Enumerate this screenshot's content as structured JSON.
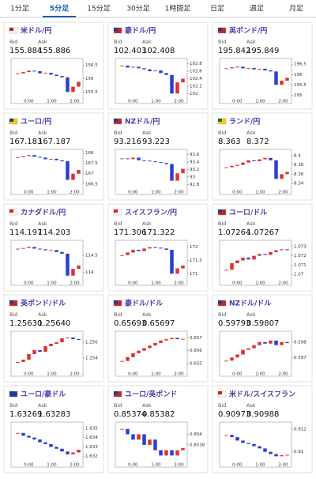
{
  "tabs": [
    "1分足",
    "5分足",
    "15分足",
    "30分足",
    "1時間足",
    "日足",
    "週足",
    "月足"
  ],
  "active_tab": 1,
  "bid_label": "Bid",
  "ask_label": "Ask",
  "xlabels": [
    "0:00",
    "1:00",
    "2:00"
  ],
  "panels": [
    {
      "name": "米ドル/円",
      "bid": "155.884",
      "ask": "155.886",
      "chart": {
        "type": "candlestick",
        "ylim": [
          155.3,
          156.7
        ],
        "yticks": [
          155.5,
          156,
          156.5
        ],
        "values": [
          156.2,
          156.25,
          156.3,
          156.28,
          156.2,
          156.22,
          156.15,
          156.1,
          156.05,
          155.5,
          155.7,
          155.88
        ]
      }
    },
    {
      "name": "豪ドル/円",
      "bid": "102.403",
      "ask": "102.408",
      "chart": {
        "type": "candlestick",
        "ylim": [
          101.9,
          102.9
        ],
        "yticks": [
          102,
          102.2,
          102.4,
          102.6,
          102.8
        ],
        "values": [
          102.75,
          102.7,
          102.72,
          102.68,
          102.65,
          102.6,
          102.62,
          102.55,
          102.5,
          102.0,
          102.3,
          102.4
        ]
      }
    },
    {
      "name": "英ポンド/円",
      "bid": "195.842",
      "ask": "195.849",
      "chart": {
        "type": "candlestick",
        "ylim": [
          194.9,
          196.7
        ],
        "yticks": [
          195,
          195.5,
          196,
          196.5
        ],
        "values": [
          196.3,
          196.35,
          196.38,
          196.3,
          196.32,
          196.25,
          196.28,
          196.2,
          196.15,
          195.5,
          195.7,
          195.84
        ]
      }
    },
    {
      "name": "ユーロ/円",
      "bid": "167.183",
      "ask": "167.187",
      "chart": {
        "type": "candlestick",
        "ylim": [
          166.3,
          168.1
        ],
        "yticks": [
          166.5,
          167,
          167.5,
          168
        ],
        "values": [
          167.8,
          167.85,
          167.9,
          167.82,
          167.78,
          167.7,
          167.72,
          167.65,
          167.6,
          166.7,
          167.0,
          167.18
        ]
      }
    },
    {
      "name": "NZドル/円",
      "bid": "93.216",
      "ask": "93.223",
      "chart": {
        "type": "candlestick",
        "ylim": [
          92.7,
          93.7
        ],
        "yticks": [
          92.8,
          93,
          93.2,
          93.4,
          93.6
        ],
        "values": [
          93.5,
          93.48,
          93.52,
          93.45,
          93.44,
          93.42,
          93.4,
          93.38,
          93.35,
          92.9,
          93.1,
          93.22
        ]
      }
    },
    {
      "name": "ランド/円",
      "bid": "8.363",
      "ask": "8.372",
      "chart": {
        "type": "candlestick",
        "ylim": [
          8.33,
          8.41
        ],
        "yticks": [
          8.34,
          8.36,
          8.38,
          8.4
        ],
        "values": [
          8.375,
          8.378,
          8.38,
          8.385,
          8.39,
          8.388,
          8.392,
          8.395,
          8.39,
          8.35,
          8.36,
          8.365
        ]
      }
    },
    {
      "name": "カナダドル/円",
      "bid": "114.197",
      "ask": "114.203",
      "chart": {
        "type": "candlestick",
        "ylim": [
          113.8,
          114.9
        ],
        "yticks": [
          114,
          114.5
        ],
        "values": [
          114.7,
          114.72,
          114.75,
          114.7,
          114.68,
          114.65,
          114.66,
          114.6,
          114.55,
          113.9,
          114.1,
          114.2
        ]
      }
    },
    {
      "name": "スイスフラン/円",
      "bid": "171.306",
      "ask": "171.322",
      "chart": {
        "type": "candlestick",
        "ylim": [
          170.8,
          172.2
        ],
        "yticks": [
          171,
          171.5,
          172
        ],
        "values": [
          171.7,
          171.8,
          171.9,
          171.85,
          171.95,
          172.0,
          171.98,
          171.95,
          171.9,
          171.0,
          171.2,
          171.31
        ]
      }
    },
    {
      "name": "ユーロ/ドル",
      "bid": "1.07264",
      "ask": "1.07267",
      "chart": {
        "type": "candlestick",
        "ylim": [
          1.0695,
          1.0735
        ],
        "yticks": [
          1.07,
          1.071,
          1.072,
          1.073
        ],
        "values": [
          1.0705,
          1.0712,
          1.0715,
          1.0718,
          1.0716,
          1.072,
          1.0722,
          1.0721,
          1.0724,
          1.0726,
          1.0727,
          1.07264
        ]
      }
    },
    {
      "name": "英ポンド/ドル",
      "bid": "1.25630",
      "ask": "1.25640",
      "chart": {
        "type": "candlestick",
        "ylim": [
          1.2525,
          1.2572
        ],
        "yticks": [
          1.254,
          1.256
        ],
        "values": [
          1.2535,
          1.2538,
          1.2545,
          1.255,
          1.2548,
          1.2555,
          1.2558,
          1.256,
          1.2565,
          1.2566,
          1.2564,
          1.2563
        ]
      }
    },
    {
      "name": "豪ドル/ドル",
      "bid": "0.65693",
      "ask": "0.65697",
      "chart": {
        "type": "candlestick",
        "ylim": [
          0.6545,
          0.6574
        ],
        "yticks": [
          0.655,
          0.656,
          0.657
        ],
        "values": [
          0.6552,
          0.6555,
          0.6558,
          0.656,
          0.6562,
          0.6564,
          0.6566,
          0.6568,
          0.6569,
          0.657,
          0.6569,
          0.65693
        ]
      }
    },
    {
      "name": "NZドル/ドル",
      "bid": "0.59793",
      "ask": "0.59807",
      "chart": {
        "type": "candlestick",
        "ylim": [
          0.5962,
          0.5986
        ],
        "yticks": [
          0.597,
          0.598
        ],
        "values": [
          0.5968,
          0.597,
          0.5972,
          0.5975,
          0.5976,
          0.5978,
          0.598,
          0.5979,
          0.5981,
          0.5978,
          0.598,
          0.59793
        ]
      }
    },
    {
      "name": "ユーロ/豪ドル",
      "bid": "1.63269",
      "ask": "1.63283",
      "chart": {
        "type": "candlestick",
        "ylim": [
          1.6315,
          1.6355
        ],
        "yticks": [
          1.632,
          1.633,
          1.634,
          1.635
        ],
        "values": [
          1.6345,
          1.6342,
          1.634,
          1.6338,
          1.6335,
          1.6333,
          1.633,
          1.6328,
          1.6325,
          1.6322,
          1.6324,
          1.63269
        ]
      }
    },
    {
      "name": "ユーロ/英ポンド",
      "bid": "0.85374",
      "ask": "0.85382",
      "chart": {
        "type": "candlestick",
        "ylim": [
          0.8535,
          0.8542
        ],
        "yticks": [
          0.8538,
          0.854
        ],
        "values": [
          0.8541,
          0.854,
          0.8539,
          0.854,
          0.8538,
          0.8539,
          0.8537,
          0.8536,
          0.8537,
          0.8536,
          0.8537,
          0.85374
        ]
      }
    },
    {
      "name": "米ドル/スイスフラン",
      "bid": "0.90973",
      "ask": "0.90988",
      "chart": {
        "type": "candlestick",
        "ylim": [
          0.9092,
          0.9125
        ],
        "yticks": [
          0.91,
          0.912
        ],
        "values": [
          0.9115,
          0.9113,
          0.911,
          0.9108,
          0.9107,
          0.9105,
          0.9103,
          0.91,
          0.9098,
          0.9096,
          0.9097,
          0.90973
        ]
      }
    }
  ]
}
